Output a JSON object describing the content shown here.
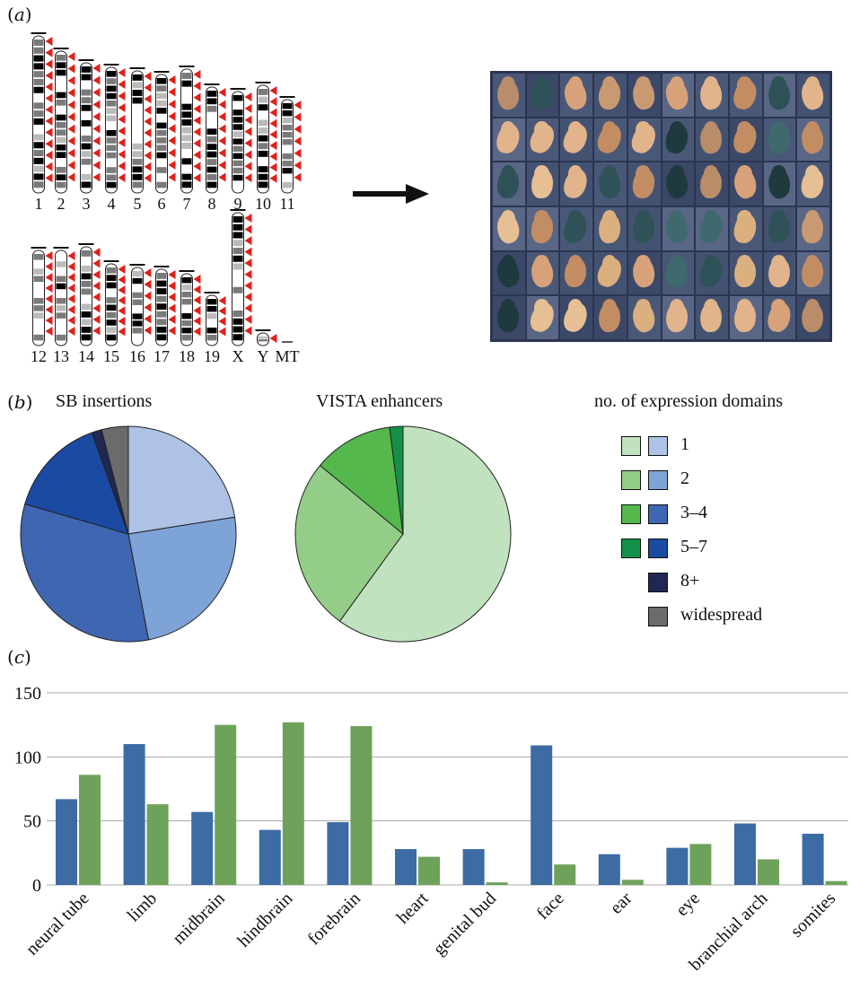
{
  "panels": {
    "a": {
      "label": "a",
      "karyotype_top_labels": [
        "1",
        "2",
        "3",
        "4",
        "5",
        "6",
        "7",
        "8",
        "9",
        "10",
        "11"
      ],
      "karyotype_bottom_labels": [
        "12",
        "13",
        "14",
        "15",
        "16",
        "17",
        "18",
        "19",
        "X",
        "Y",
        "MT"
      ]
    },
    "b": {
      "label": "b",
      "sb_title": "SB insertions",
      "vista_title": "VISTA enhancers",
      "legend_title": "no. of expression domains",
      "legend": [
        {
          "label": "1",
          "green": "#c1e2bf",
          "blue": "#aec2e6"
        },
        {
          "label": "2",
          "green": "#94cd87",
          "blue": "#7ea3d6"
        },
        {
          "label": "3–4",
          "green": "#54b84c",
          "blue": "#3e66b1"
        },
        {
          "label": "5–7",
          "green": "#149049",
          "blue": "#1b4aa3"
        },
        {
          "label": "8+",
          "green": null,
          "blue": "#1f2752"
        },
        {
          "label": "widespread",
          "green": null,
          "blue": "#6b6b6b"
        }
      ]
    },
    "c": {
      "label": "c"
    }
  },
  "chart_data": [
    {
      "type": "pie",
      "title": "SB insertions",
      "slices": [
        {
          "category": "1",
          "value": 22.5,
          "color": "#aec2e6"
        },
        {
          "category": "2",
          "value": 24.5,
          "color": "#7ea3d6"
        },
        {
          "category": "3–4",
          "value": 32.5,
          "color": "#3e66b1"
        },
        {
          "category": "5–7",
          "value": 15.0,
          "color": "#1b4aa3"
        },
        {
          "category": "8+",
          "value": 1.5,
          "color": "#1f2752"
        },
        {
          "category": "widespread",
          "value": 4.0,
          "color": "#6b6b6b"
        }
      ]
    },
    {
      "type": "pie",
      "title": "VISTA enhancers",
      "slices": [
        {
          "category": "1",
          "value": 60.0,
          "color": "#c1e2bf"
        },
        {
          "category": "2",
          "value": 26.0,
          "color": "#94cd87"
        },
        {
          "category": "3–4",
          "value": 12.0,
          "color": "#54b84c"
        },
        {
          "category": "5–7",
          "value": 2.0,
          "color": "#149049"
        }
      ]
    },
    {
      "type": "bar",
      "categories": [
        "neural tube",
        "limb",
        "midbrain",
        "hindbrain",
        "forebrain",
        "heart",
        "genital bud",
        "face",
        "ear",
        "eye",
        "branchial arch",
        "somites"
      ],
      "series": [
        {
          "color": "#3d6ba3",
          "values": [
            67,
            110,
            57,
            43,
            49,
            28,
            28,
            109,
            24,
            29,
            48,
            40
          ]
        },
        {
          "color": "#6ea25a",
          "values": [
            86,
            63,
            125,
            127,
            124,
            22,
            2,
            16,
            4,
            32,
            20,
            3
          ]
        }
      ],
      "ylim": [
        0,
        150
      ],
      "yticks": [
        0,
        50,
        100,
        150
      ],
      "grid": true
    }
  ]
}
